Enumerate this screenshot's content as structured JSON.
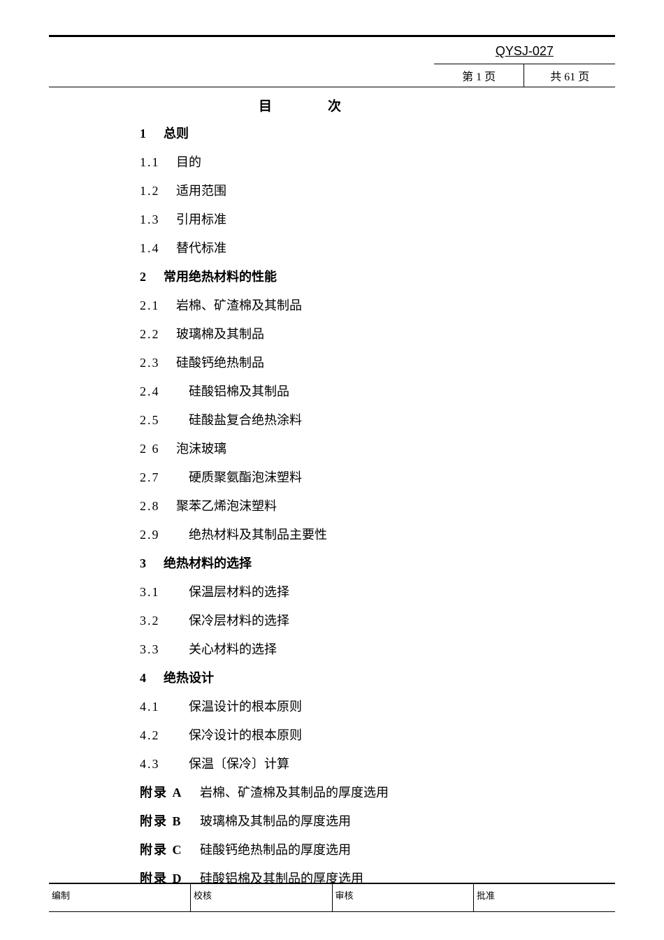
{
  "header": {
    "doc_code": "QYSJ-027",
    "page_current": "第 1 页",
    "page_total": "共 61 页"
  },
  "toc": {
    "title": "目次",
    "sections": [
      {
        "num": "1",
        "text": "总则",
        "bold": true,
        "indent": 0
      },
      {
        "num": "1.1",
        "text": "目的",
        "bold": false,
        "indent": 1
      },
      {
        "num": "1.2",
        "text": "适用范围",
        "bold": false,
        "indent": 1
      },
      {
        "num": "1.3",
        "text": "引用标准",
        "bold": false,
        "indent": 1
      },
      {
        "num": "1.4",
        "text": "替代标准",
        "bold": false,
        "indent": 1
      },
      {
        "num": "2",
        "text": "常用绝热材料的性能",
        "bold": true,
        "indent": 0
      },
      {
        "num": "2.1",
        "text": "岩棉、矿渣棉及其制品",
        "bold": false,
        "indent": 1
      },
      {
        "num": "2.2",
        "text": "玻璃棉及其制品",
        "bold": false,
        "indent": 1
      },
      {
        "num": "2.3",
        "text": "硅酸钙绝热制品",
        "bold": false,
        "indent": 1
      },
      {
        "num": "2.4",
        "text": "硅酸铝棉及其制品",
        "bold": false,
        "indent": 2
      },
      {
        "num": "2.5",
        "text": "硅酸盐复合绝热涂料",
        "bold": false,
        "indent": 2
      },
      {
        "num": "2 6",
        "text": "泡沫玻璃",
        "bold": false,
        "indent": 1
      },
      {
        "num": "2.7",
        "text": "硬质聚氨酯泡沫塑料",
        "bold": false,
        "indent": 2
      },
      {
        "num": "2.8",
        "text": "聚苯乙烯泡沫塑料",
        "bold": false,
        "indent": 1
      },
      {
        "num": "2.9",
        "text": "绝热材料及其制品主要性",
        "bold": false,
        "indent": 2
      },
      {
        "num": "3",
        "text": "绝热材料的选择",
        "bold": true,
        "indent": 0
      },
      {
        "num": "3.1",
        "text": "保温层材料的选择",
        "bold": false,
        "indent": 2
      },
      {
        "num": "3.2",
        "text": "保冷层材料的选择",
        "bold": false,
        "indent": 2
      },
      {
        "num": "3.3",
        "text": "关心材料的选择",
        "bold": false,
        "indent": 2
      },
      {
        "num": "4",
        "text": "绝热设计",
        "bold": true,
        "indent": 0
      },
      {
        "num": "4.1",
        "text": "保温设计的根本原则",
        "bold": false,
        "indent": 2
      },
      {
        "num": "4.2",
        "text": "保冷设计的根本原则",
        "bold": false,
        "indent": 2
      },
      {
        "num": "4.3",
        "text": "保温〔保冷〕计算",
        "bold": false,
        "indent": 2
      }
    ],
    "appendices": [
      {
        "label": "附录 A",
        "text": "岩棉、矿渣棉及其制品的厚度选用"
      },
      {
        "label": "附录 B",
        "text": "玻璃棉及其制品的厚度选用"
      },
      {
        "label": "附录 C",
        "text": "硅酸钙绝热制品的厚度选用"
      },
      {
        "label": "附录 D",
        "text": "硅酸铝棉及其制品的厚度选用"
      }
    ]
  },
  "footer": {
    "cell1": "编制",
    "cell2": "校核",
    "cell3": "审核",
    "cell4": "批准"
  }
}
